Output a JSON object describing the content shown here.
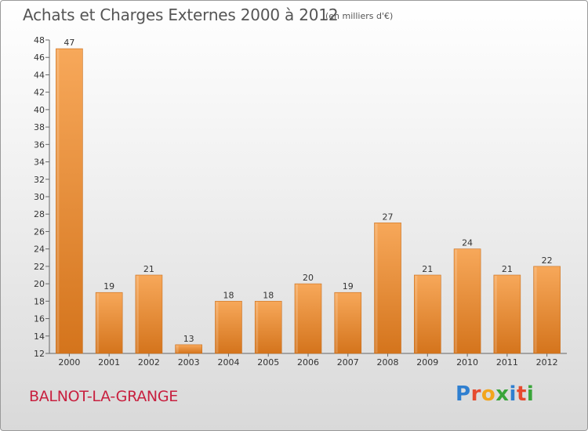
{
  "header": {
    "title": "Achats et Charges Externes 2000 à 2012",
    "unit": "(en milliers d'€)"
  },
  "footer": {
    "commune": "BALNOT-LA-GRANGE",
    "brand_letters": [
      "P",
      "r",
      "o",
      "x",
      "i",
      "t",
      "i"
    ]
  },
  "colors": {
    "bar_light": "#f7a85a",
    "bar_dark": "#d4741c",
    "commune_text": "#c8203f",
    "brand": [
      "#2f7fd0",
      "#e64a2e",
      "#f2a51c",
      "#3aa53a",
      "#2f7fd0",
      "#e64a2e",
      "#3aa53a"
    ]
  },
  "chart_data": {
    "type": "bar",
    "title": "Achats et Charges Externes 2000 à 2012",
    "subtitle": "(en milliers d'€)",
    "xlabel": "",
    "ylabel": "",
    "categories": [
      "2000",
      "2001",
      "2002",
      "2003",
      "2004",
      "2005",
      "2006",
      "2007",
      "2008",
      "2009",
      "2010",
      "2011",
      "2012"
    ],
    "values": [
      47,
      19,
      21,
      13,
      18,
      18,
      20,
      19,
      27,
      21,
      24,
      21,
      22
    ],
    "data_labels": [
      "47",
      "19",
      "21",
      "13",
      "18",
      "18",
      "20",
      "19",
      "27",
      "21",
      "24",
      "21",
      "22"
    ],
    "ylim": [
      12,
      48
    ],
    "yticks": [
      "12",
      "14",
      "16",
      "18",
      "20",
      "22",
      "24",
      "26",
      "28",
      "30",
      "32",
      "34",
      "36",
      "38",
      "40",
      "42",
      "44",
      "46",
      "48"
    ],
    "grid": false,
    "legend": "none"
  }
}
